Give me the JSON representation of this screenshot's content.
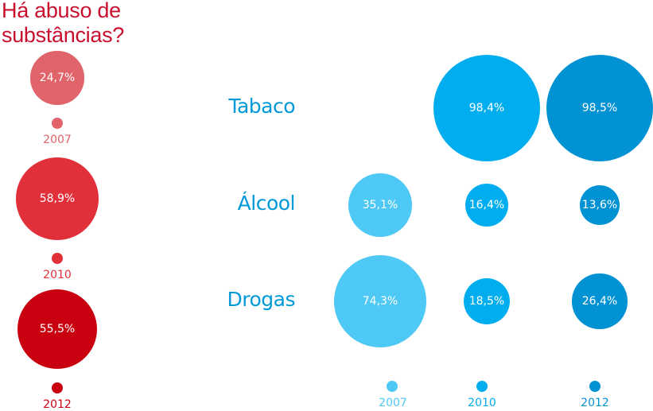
{
  "title_line1": "Há abuso de",
  "title_line2": "substâncias?",
  "colors": {
    "title": "#c8102e",
    "red_2007": "#e0646a",
    "red_2010": "#e1303a",
    "red_2012": "#c8000f",
    "blue_2007": "#4ec8f4",
    "blue_2010": "#00aeef",
    "blue_2012": "#0092d2",
    "row_label": "#0099d8"
  },
  "chart_data": [
    {
      "type": "bubble",
      "title": "Há abuso de substâncias?",
      "categories": [
        "2007",
        "2010",
        "2012"
      ],
      "values": [
        24.7,
        58.9,
        55.5
      ],
      "labels": [
        "24,7%",
        "58,9%",
        "55,5%"
      ]
    },
    {
      "type": "bubble",
      "rows": [
        "Tabaco",
        "Álcool",
        "Drogas"
      ],
      "legend": [
        "2007",
        "2010",
        "2012"
      ],
      "series": [
        {
          "name": "2007",
          "values": [
            null,
            35.1,
            74.3
          ],
          "labels": [
            "",
            "35,1%",
            "74,3%"
          ]
        },
        {
          "name": "2010",
          "values": [
            98.4,
            16.4,
            18.5
          ],
          "labels": [
            "98,4%",
            "16,4%",
            "18,5%"
          ]
        },
        {
          "name": "2012",
          "values": [
            98.5,
            13.6,
            26.4
          ],
          "labels": [
            "98,5%",
            "13,6%",
            "26,4%"
          ]
        }
      ]
    }
  ]
}
